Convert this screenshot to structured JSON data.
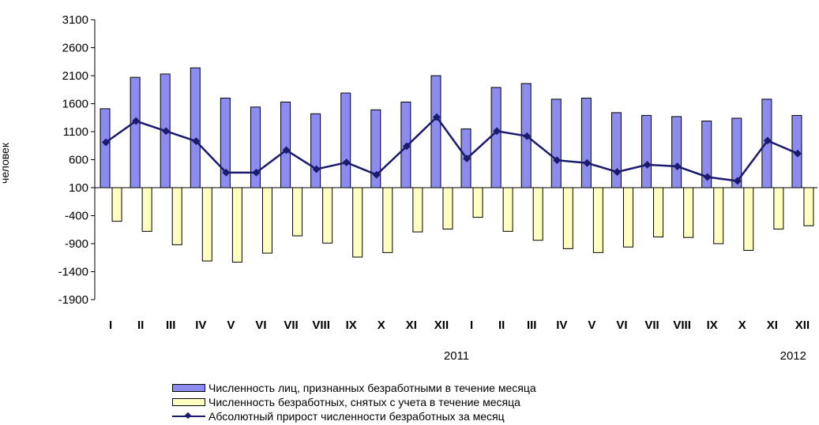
{
  "chart_data": {
    "type": "bar",
    "ylabel": "человек",
    "ylim": [
      -1900,
      3100
    ],
    "yticks": [
      3100,
      2600,
      2100,
      1600,
      1100,
      600,
      100,
      -400,
      -900,
      -1400,
      -1900
    ],
    "baseline": 100,
    "categories": [
      "I",
      "II",
      "III",
      "IV",
      "V",
      "VI",
      "VII",
      "VIII",
      "IX",
      "X",
      "XI",
      "XII",
      "I",
      "II",
      "III",
      "IV",
      "V",
      "VI",
      "VII",
      "VIII",
      "IX",
      "X",
      "XI",
      "XII"
    ],
    "year_labels": [
      {
        "label": "2011",
        "after_index": 11
      },
      {
        "label": "2012",
        "after_index": 23
      }
    ],
    "series": [
      {
        "name": "Численность лиц, признанных безработными в течение месяца",
        "kind": "bar",
        "color": "#8c8cf0",
        "values": [
          1510,
          2070,
          2130,
          2240,
          1700,
          1540,
          1630,
          1420,
          1790,
          1490,
          1630,
          2100,
          1150,
          1890,
          1960,
          1680,
          1700,
          1440,
          1390,
          1370,
          1290,
          1340,
          1680,
          1390
        ]
      },
      {
        "name": "Численность безработных, снятых с учета в течение месяца",
        "kind": "bar",
        "color": "#ffffc0",
        "values": [
          -600,
          -780,
          -1020,
          -1310,
          -1330,
          -1170,
          -860,
          -990,
          -1240,
          -1160,
          -790,
          -740,
          -530,
          -780,
          -940,
          -1090,
          -1160,
          -1060,
          -880,
          -890,
          -1000,
          -1120,
          -740,
          -680
        ]
      },
      {
        "name": "Абсолютный прирост численности безработных за месяц",
        "kind": "line",
        "color": "#1a1a6e",
        "values": [
          910,
          1290,
          1110,
          930,
          370,
          370,
          770,
          430,
          550,
          330,
          840,
          1360,
          620,
          1110,
          1020,
          590,
          540,
          380,
          510,
          480,
          290,
          220,
          940,
          710
        ]
      }
    ]
  }
}
